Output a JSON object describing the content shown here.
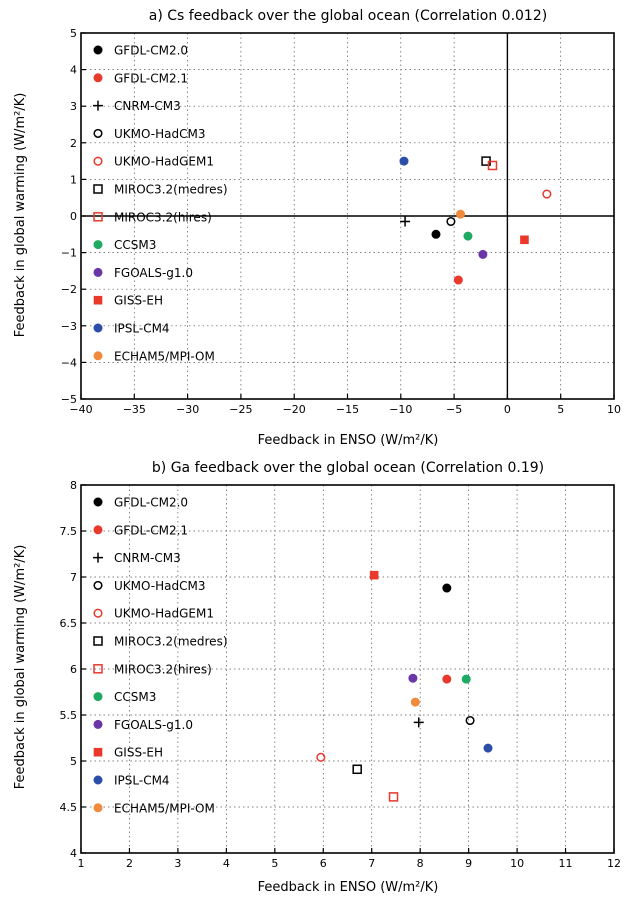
{
  "legend_entries": [
    {
      "name": "GFDL-CM2.0",
      "color": "#000000",
      "marker": "filled-circle"
    },
    {
      "name": "GFDL-CM2.1",
      "color": "#e8392b",
      "marker": "filled-circle"
    },
    {
      "name": "CNRM-CM3",
      "color": "#000000",
      "marker": "plus"
    },
    {
      "name": "UKMO-HadCM3",
      "color": "#000000",
      "marker": "open-circle"
    },
    {
      "name": "UKMO-HadGEM1",
      "color": "#e8392b",
      "marker": "open-circle"
    },
    {
      "name": "MIROC3.2(medres)",
      "color": "#000000",
      "marker": "open-square"
    },
    {
      "name": "MIROC3.2(hires)",
      "color": "#e8392b",
      "marker": "open-square"
    },
    {
      "name": "CCSM3",
      "color": "#1faa64",
      "marker": "filled-circle"
    },
    {
      "name": "FGOALS-g1.0",
      "color": "#6a35a6",
      "marker": "filled-circle"
    },
    {
      "name": "GISS-EH",
      "color": "#e8392b",
      "marker": "filled-square"
    },
    {
      "name": "IPSL-CM4",
      "color": "#2b4fa8",
      "marker": "filled-circle"
    },
    {
      "name": "ECHAM5/MPI-OM",
      "color": "#f08a3c",
      "marker": "filled-circle"
    }
  ],
  "chart_data": [
    {
      "type": "scatter",
      "title": "a) Cs feedback over the global ocean (Correlation 0.012)",
      "xlabel": "Feedback in ENSO (W/m²/K)",
      "ylabel": "Feedback in global warming (W/m²/K)",
      "xlim": [
        -40,
        10
      ],
      "ylim": [
        -5,
        5
      ],
      "xticks": [
        -40,
        -35,
        -30,
        -25,
        -20,
        -15,
        -10,
        -5,
        0,
        5,
        10
      ],
      "yticks": [
        -5,
        -4,
        -3,
        -2,
        -1,
        0,
        1,
        2,
        3,
        4,
        5
      ],
      "grid": true,
      "zero_lines": true,
      "legend_position": "upper-left",
      "points": [
        {
          "model": "GFDL-CM2.0",
          "x": -6.7,
          "y": -0.5
        },
        {
          "model": "GFDL-CM2.1",
          "x": -4.6,
          "y": -1.75
        },
        {
          "model": "CNRM-CM3",
          "x": -9.6,
          "y": -0.15
        },
        {
          "model": "UKMO-HadCM3",
          "x": -5.3,
          "y": -0.15
        },
        {
          "model": "UKMO-HadGEM1",
          "x": 3.7,
          "y": 0.6
        },
        {
          "model": "MIROC3.2(medres)",
          "x": -2.0,
          "y": 1.5
        },
        {
          "model": "MIROC3.2(hires)",
          "x": -1.4,
          "y": 1.38
        },
        {
          "model": "CCSM3",
          "x": -3.7,
          "y": -0.55
        },
        {
          "model": "FGOALS-g1.0",
          "x": -2.3,
          "y": -1.05
        },
        {
          "model": "GISS-EH",
          "x": 1.6,
          "y": -0.65
        },
        {
          "model": "IPSL-CM4",
          "x": -9.7,
          "y": 1.5
        },
        {
          "model": "ECHAM5/MPI-OM",
          "x": -4.4,
          "y": 0.05
        }
      ]
    },
    {
      "type": "scatter",
      "title": "b) Ga feedback over the global ocean (Correlation 0.19)",
      "xlabel": "Feedback in ENSO (W/m²/K)",
      "ylabel": "Feedback in global warming (W/m²/K)",
      "xlim": [
        1,
        12
      ],
      "ylim": [
        4,
        8
      ],
      "xticks": [
        1,
        2,
        3,
        4,
        5,
        6,
        7,
        8,
        9,
        10,
        11,
        12
      ],
      "yticks": [
        4,
        4.5,
        5,
        5.5,
        6,
        6.5,
        7,
        7.5,
        8
      ],
      "grid": true,
      "zero_lines": false,
      "legend_position": "upper-left",
      "points": [
        {
          "model": "GFDL-CM2.0",
          "x": 8.55,
          "y": 6.88
        },
        {
          "model": "GFDL-CM2.1",
          "x": 8.55,
          "y": 5.89
        },
        {
          "model": "CNRM-CM3",
          "x": 7.97,
          "y": 5.42
        },
        {
          "model": "UKMO-HadCM3",
          "x": 9.03,
          "y": 5.44
        },
        {
          "model": "UKMO-HadGEM1",
          "x": 5.95,
          "y": 5.04
        },
        {
          "model": "MIROC3.2(medres)",
          "x": 6.7,
          "y": 4.91
        },
        {
          "model": "MIROC3.2(hires)",
          "x": 7.45,
          "y": 4.61
        },
        {
          "model": "CCSM3",
          "x": 8.95,
          "y": 5.89
        },
        {
          "model": "FGOALS-g1.0",
          "x": 7.85,
          "y": 5.9
        },
        {
          "model": "GISS-EH",
          "x": 7.05,
          "y": 7.02
        },
        {
          "model": "IPSL-CM4",
          "x": 9.4,
          "y": 5.14
        },
        {
          "model": "ECHAM5/MPI-OM",
          "x": 7.9,
          "y": 5.64
        }
      ]
    }
  ]
}
